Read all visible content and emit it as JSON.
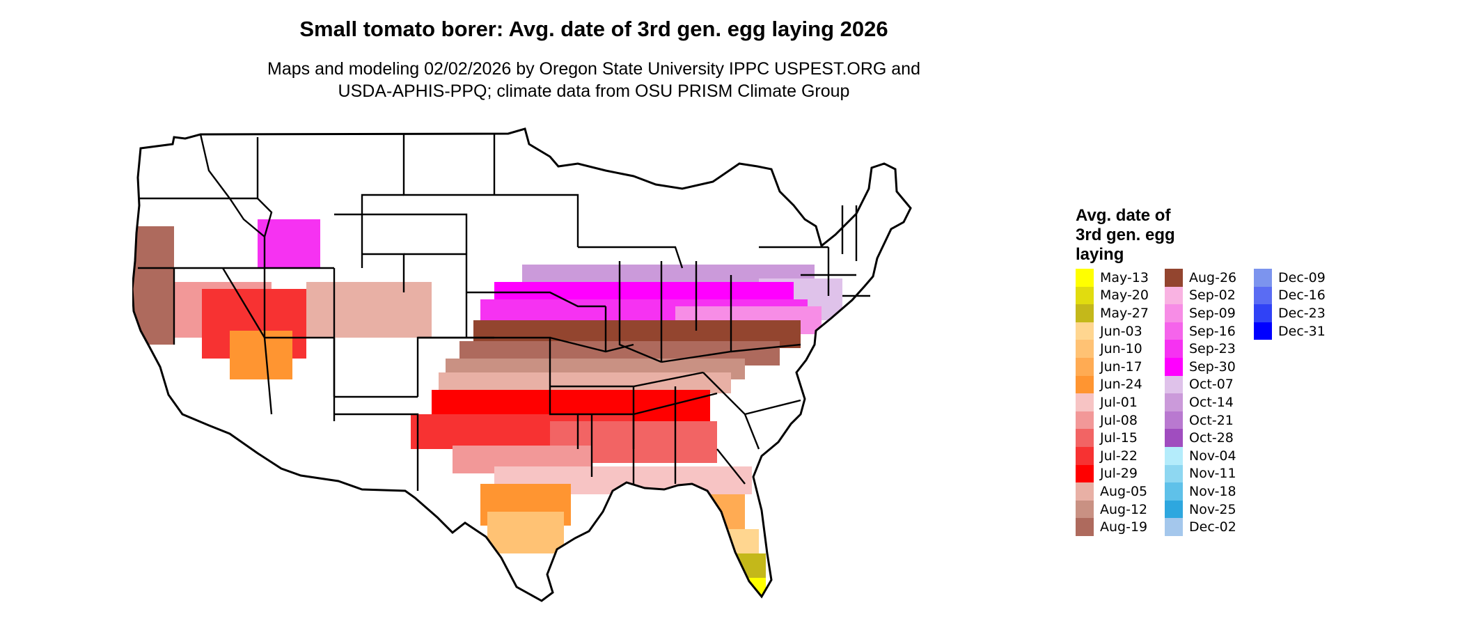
{
  "header": {
    "title": "Small tomato borer: Avg. date of 3rd gen. egg laying 2026",
    "subtitle_line1": "Maps and modeling 02/02/2026 by Oregon State University IPPC USPEST.ORG and",
    "subtitle_line2": "USDA-APHIS-PPQ; climate data from OSU PRISM Climate Group"
  },
  "legend": {
    "title_lines": [
      "Avg. date of",
      "3rd gen. egg",
      "laying"
    ],
    "columns": [
      [
        {
          "label": "May-13",
          "color": "#FFFF00"
        },
        {
          "label": "May-20",
          "color": "#E1DC0F"
        },
        {
          "label": "May-27",
          "color": "#C4B81A"
        },
        {
          "label": "Jun-03",
          "color": "#FFD690"
        },
        {
          "label": "Jun-10",
          "color": "#FFC274"
        },
        {
          "label": "Jun-17",
          "color": "#FFAB53"
        },
        {
          "label": "Jun-24",
          "color": "#FF9531"
        },
        {
          "label": "Jul-01",
          "color": "#F7C4C4"
        },
        {
          "label": "Jul-08",
          "color": "#F29898"
        },
        {
          "label": "Jul-15",
          "color": "#F26464"
        },
        {
          "label": "Jul-22",
          "color": "#F73232"
        },
        {
          "label": "Jul-29",
          "color": "#FF0000"
        },
        {
          "label": "Aug-05",
          "color": "#E8B0A5"
        },
        {
          "label": "Aug-12",
          "color": "#C99183"
        },
        {
          "label": "Aug-19",
          "color": "#AE6A5D"
        }
      ],
      [
        {
          "label": "Aug-26",
          "color": "#93452F"
        },
        {
          "label": "Sep-02",
          "color": "#F9B3E2"
        },
        {
          "label": "Sep-09",
          "color": "#F78DE6"
        },
        {
          "label": "Sep-16",
          "color": "#F564EB"
        },
        {
          "label": "Sep-23",
          "color": "#F632F2"
        },
        {
          "label": "Sep-30",
          "color": "#FF00FF"
        },
        {
          "label": "Oct-07",
          "color": "#DFC2EA"
        },
        {
          "label": "Oct-14",
          "color": "#CB9ADA"
        },
        {
          "label": "Oct-21",
          "color": "#B979D0"
        },
        {
          "label": "Oct-28",
          "color": "#A04DBF"
        },
        {
          "label": "Nov-04",
          "color": "#B4ECFB"
        },
        {
          "label": "Nov-11",
          "color": "#8ED7F1"
        },
        {
          "label": "Nov-18",
          "color": "#5FC1E9"
        },
        {
          "label": "Nov-25",
          "color": "#2EA7DF"
        },
        {
          "label": "Dec-02",
          "color": "#A4C7EC"
        }
      ],
      [
        {
          "label": "Dec-09",
          "color": "#7C94EE"
        },
        {
          "label": "Dec-16",
          "color": "#5A6CF3"
        },
        {
          "label": "Dec-23",
          "color": "#3042F6"
        },
        {
          "label": "Dec-31",
          "color": "#0000FF"
        }
      ]
    ]
  }
}
